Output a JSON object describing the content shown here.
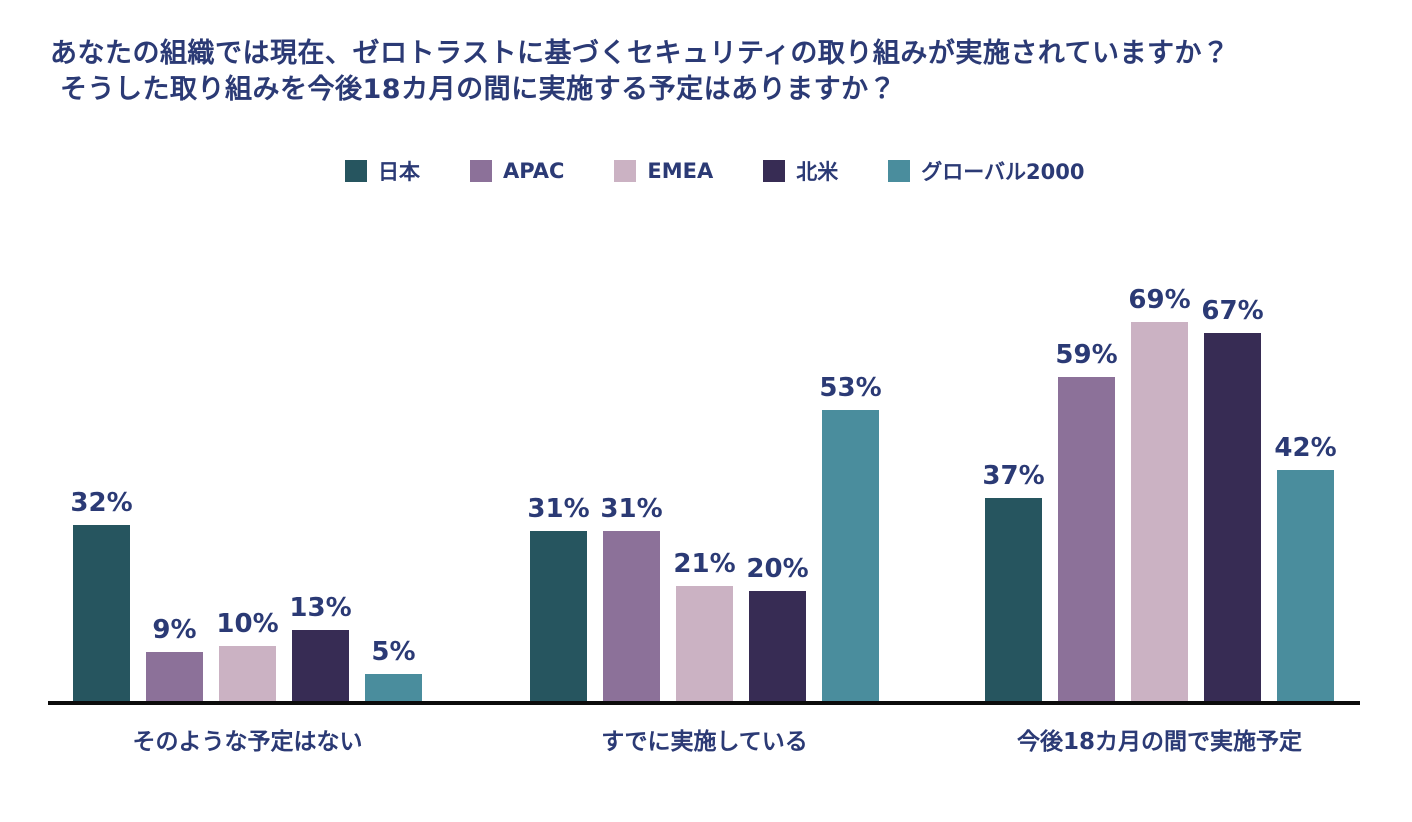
{
  "title": {
    "line1": "あなたの組織では現在、ゼロトラストに基づくセキュリティの取り組みが実施されていますか？",
    "line2": "そうした取り組みを今後18カ月の間に実施する予定はありますか？"
  },
  "colors": {
    "text_navy": "#2b3a75",
    "axis": "#0c0c0c",
    "background": "#ffffff"
  },
  "chart_data": {
    "type": "bar",
    "title": "あなたの組織では現在、ゼロトラストに基づくセキュリティの取り組みが実施されていますか？ そうした取り組みを今後18カ月の間に実施する予定はありますか？",
    "categories": [
      "そのような予定はない",
      "すでに実施している",
      "今後18カ月の間で実施予定"
    ],
    "series": [
      {
        "name": "日本",
        "color": "#26555f",
        "values": [
          32,
          31,
          37
        ]
      },
      {
        "name": "APAC",
        "color": "#8c7199",
        "values": [
          9,
          31,
          59
        ]
      },
      {
        "name": "EMEA",
        "color": "#cbb2c3",
        "values": [
          10,
          21,
          69
        ]
      },
      {
        "name": "北米",
        "color": "#372c54",
        "values": [
          13,
          20,
          67
        ]
      },
      {
        "name": "グローバル2000",
        "color": "#4a8d9d",
        "values": [
          5,
          53,
          42
        ]
      }
    ],
    "value_suffix": "%",
    "value_labels_shown": true,
    "xlabel": "",
    "ylabel": "",
    "ylim": [
      0,
      75
    ],
    "grid": false,
    "y_axis_shown": false,
    "legend_position": "top"
  }
}
